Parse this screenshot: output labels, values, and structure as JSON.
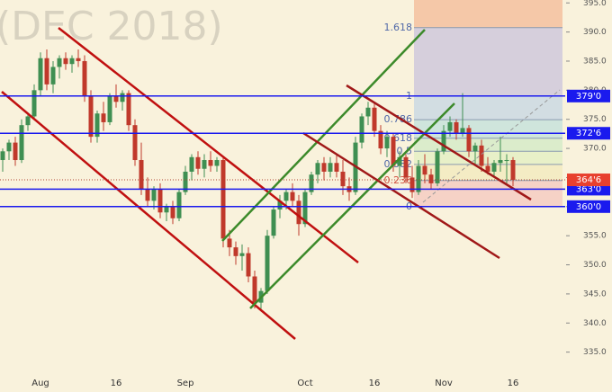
{
  "chart_data": {
    "type": "candlestick",
    "watermark": "(DEC 2018)",
    "categories": [
      null,
      null,
      null,
      null,
      null,
      null,
      "Aug",
      null,
      null,
      null,
      null,
      null,
      null,
      null,
      null,
      null,
      null,
      null,
      "16",
      null,
      null,
      null,
      null,
      null,
      null,
      null,
      null,
      null,
      null,
      "Sep",
      null,
      null,
      null,
      null,
      null,
      null,
      null,
      null,
      null,
      null,
      null,
      null,
      null,
      null,
      null,
      null,
      null,
      null,
      "Oct",
      null,
      null,
      null,
      null,
      null,
      null,
      null,
      null,
      null,
      null,
      "16",
      null,
      null,
      null,
      null,
      null,
      null,
      null,
      null,
      null,
      null,
      "Nov",
      null,
      null,
      null,
      null,
      null,
      null,
      null,
      null,
      null,
      null,
      "16"
    ],
    "open": [
      368,
      369.5,
      371,
      368,
      374,
      375.5,
      380,
      385.5,
      381,
      384,
      385.5,
      384.5,
      385.5,
      385,
      379,
      372,
      376,
      374.5,
      379,
      378,
      379.5,
      374,
      368,
      363,
      361,
      363,
      359,
      360,
      358,
      362.5,
      366,
      368.5,
      366.5,
      368,
      367,
      368,
      354.5,
      353,
      351.5,
      352,
      348,
      343.5,
      345.5,
      355,
      359.5,
      361,
      362.5,
      361,
      357,
      362.5,
      365.5,
      367.5,
      366,
      367.5,
      366,
      363.5,
      362.5,
      371,
      375.5,
      377,
      373,
      370,
      372,
      367,
      368.5,
      365,
      362.5,
      367,
      365.5,
      364,
      369.5,
      373,
      374.5,
      372.5,
      373.5,
      369.5,
      370.5,
      367,
      366,
      367.5,
      368,
      368
    ],
    "high": [
      370,
      371.5,
      372,
      375,
      376,
      381,
      386.5,
      387,
      385,
      386,
      386.5,
      386,
      387,
      386,
      380,
      376.5,
      378,
      379.5,
      381,
      380,
      380,
      375,
      371,
      365,
      363.5,
      364,
      360.5,
      361,
      363,
      367,
      369,
      369.5,
      369,
      369.5,
      368.5,
      368.5,
      356,
      354,
      353.5,
      353,
      349,
      346,
      356,
      360,
      362,
      363,
      364,
      362,
      363,
      366,
      368,
      368.5,
      368.5,
      369,
      368,
      365,
      372,
      376,
      378,
      378,
      374,
      373,
      372.5,
      369.5,
      369,
      367,
      368,
      369,
      366.5,
      370,
      374,
      375.5,
      375,
      379.5,
      374,
      371,
      371.5,
      368.5,
      368,
      372,
      369,
      368.5
    ],
    "low": [
      366,
      368,
      367,
      367.5,
      373,
      375,
      379,
      380,
      379.5,
      382,
      383.5,
      383,
      384,
      378,
      371,
      371,
      373,
      374,
      377,
      376.5,
      373,
      367,
      362,
      360,
      359.5,
      358,
      357.5,
      357,
      357.5,
      362,
      364.5,
      365.5,
      365,
      366,
      366,
      353,
      351.5,
      350,
      349,
      347,
      342.5,
      342,
      345,
      354.5,
      358,
      359.5,
      360,
      355,
      356.5,
      362,
      364,
      364.5,
      365,
      365,
      362,
      361,
      362,
      370,
      374,
      372,
      369,
      368.5,
      366,
      365,
      364,
      361.5,
      362,
      364,
      363,
      363.5,
      369,
      372,
      371.5,
      372,
      368.5,
      367,
      366,
      365.5,
      365,
      366,
      364,
      363.5
    ],
    "close": [
      369.5,
      371,
      368,
      374,
      375.5,
      380,
      385.5,
      381,
      384,
      385.5,
      384.5,
      385.5,
      385,
      379,
      372,
      376,
      374.5,
      379,
      378,
      379.5,
      374,
      368,
      363,
      361,
      363,
      359,
      360,
      358,
      362.5,
      366,
      368.5,
      366.5,
      368,
      367,
      368,
      354.5,
      353,
      351.5,
      352,
      348,
      343.5,
      345.5,
      355,
      359.5,
      361,
      362.5,
      361,
      357,
      362.5,
      365.5,
      367.5,
      366,
      367.5,
      366,
      363.5,
      362.5,
      371,
      375.5,
      377,
      373,
      370,
      372,
      367,
      368.5,
      365,
      362.5,
      367,
      365.5,
      364,
      369.5,
      373,
      374.5,
      372.5,
      373.5,
      369.5,
      370.5,
      367,
      366,
      367.5,
      368,
      368,
      364.6
    ],
    "up_color": "#3f8f52",
    "down_color": "#c0392b",
    "ylim": [
      331.7,
      395.5
    ],
    "yticks": [
      {
        "value": 335,
        "label": "335.0"
      },
      {
        "value": 340,
        "label": "340.0"
      },
      {
        "value": 345,
        "label": "345.0"
      },
      {
        "value": 350,
        "label": "350.0"
      },
      {
        "value": 355,
        "label": "355.0"
      },
      {
        "value": 360,
        "label": "360.0"
      },
      {
        "value": 365,
        "label": "365.0"
      },
      {
        "value": 370,
        "label": "370.0"
      },
      {
        "value": 375,
        "label": "375.0"
      },
      {
        "value": 380,
        "label": "380.0"
      },
      {
        "value": 385,
        "label": "385.0"
      },
      {
        "value": 390,
        "label": "390.0"
      },
      {
        "value": 395,
        "label": "395.0"
      }
    ],
    "levels": [
      {
        "value": 379,
        "label": "379'0"
      },
      {
        "value": 372.6,
        "label": "372'6"
      },
      {
        "value": 363,
        "label": "363'0"
      },
      {
        "value": 360,
        "label": "360'0"
      }
    ],
    "level_color": "#1a1aee",
    "last_price": {
      "value": 364.6,
      "label": "364'6"
    },
    "last_color": "#e8402e",
    "fib": {
      "low": 360,
      "high": 379,
      "levels": [
        1.618,
        1,
        0.786,
        0.618,
        0.5,
        0.382,
        0.236,
        0
      ],
      "band_colors": [
        "#f5c8a8",
        "#d6cfdc",
        "#d2dde2",
        "#cfe5dc",
        "#dbeccb",
        "#e8f0c8",
        "#f4ecc4",
        "#f6d2c6"
      ]
    }
  }
}
